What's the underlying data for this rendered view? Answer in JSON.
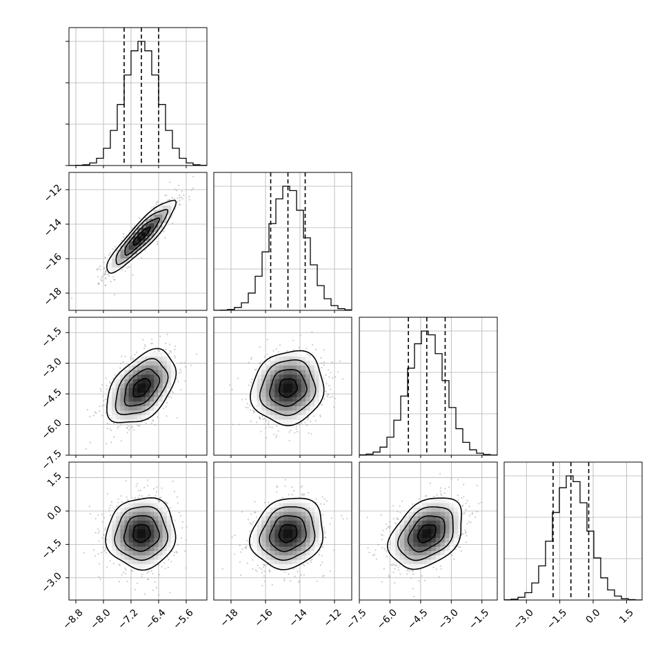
{
  "chart_data": {
    "type": "corner",
    "title": "",
    "params": [
      {
        "range": [
          -9.0,
          -5.0
        ],
        "ticks": [
          -8.8,
          -8.0,
          -7.2,
          -6.4,
          -5.6
        ],
        "tick_labels": [
          "−8.8",
          "−8.0",
          "−7.2",
          "−6.4",
          "−5.6"
        ],
        "mean": -6.9,
        "sd": 0.5,
        "quantiles": [
          -7.4,
          -6.9,
          -6.4
        ]
      },
      {
        "range": [
          -19.0,
          -11.0
        ],
        "ticks": [
          -18,
          -16,
          -14,
          -12
        ],
        "tick_labels": [
          "−18",
          "−16",
          "−14",
          "−12"
        ],
        "mean": -14.7,
        "sd": 1.05,
        "quantiles": [
          -15.7,
          -14.7,
          -13.7
        ]
      },
      {
        "range": [
          -7.5,
          -0.75
        ],
        "ticks": [
          -7.5,
          -6.0,
          -4.5,
          -3.0,
          -1.5
        ],
        "tick_labels": [
          "−7.5",
          "−6.0",
          "−4.5",
          "−3.0",
          "−1.5"
        ],
        "mean": -4.2,
        "sd": 0.9,
        "quantiles": [
          -5.1,
          -4.2,
          -3.3
        ]
      },
      {
        "range": [
          -4.0,
          2.2
        ],
        "ticks": [
          -3.0,
          -1.5,
          0.0,
          1.5
        ],
        "tick_labels": [
          "−3.0",
          "−1.5",
          "0.0",
          "1.5"
        ],
        "mean": -1.0,
        "sd": 0.8,
        "quantiles": [
          -1.8,
          -1.0,
          -0.2
        ]
      }
    ],
    "correlations": [
      [
        1.0,
        0.9,
        0.45,
        0.05
      ],
      [
        0.9,
        1.0,
        0.1,
        0.15
      ],
      [
        0.45,
        0.1,
        1.0,
        0.35
      ],
      [
        0.05,
        0.15,
        0.35,
        1.0
      ]
    ],
    "contour_levels_sigma": [
      0.5,
      1.0,
      1.5,
      2.0
    ],
    "grid": true
  }
}
